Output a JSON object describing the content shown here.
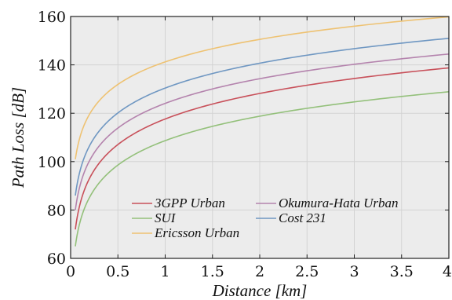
{
  "chart_data": {
    "type": "line",
    "xlabel": "Distance [km]",
    "ylabel": "Path Loss [dB]",
    "xlim": [
      0,
      4
    ],
    "ylim": [
      60,
      160
    ],
    "xticks": [
      0,
      0.5,
      1,
      1.5,
      2,
      2.5,
      3,
      3.5,
      4
    ],
    "xtick_labels": [
      "0",
      "0.5",
      "1",
      "1.5",
      "2",
      "2.5",
      "3",
      "3.5",
      "4"
    ],
    "yticks": [
      60,
      80,
      100,
      120,
      140,
      160
    ],
    "ytick_labels": [
      "60",
      "80",
      "100",
      "120",
      "140",
      "160"
    ],
    "grid": true,
    "legend_position": "lower-center",
    "x": [
      0.05,
      0.1,
      0.2,
      0.5,
      1,
      1.5,
      2,
      2.5,
      3,
      3.5,
      4
    ],
    "series": [
      {
        "name": "3GPP Urban",
        "color": "#c8505a",
        "values": [
          72,
          82.5,
          93.1,
          107.1,
          117.6,
          123.8,
          128.2,
          131.6,
          134.4,
          136.7,
          138.7
        ]
      },
      {
        "name": "Okumura-Hata Urban",
        "color": "#b483ad",
        "values": [
          80,
          90.2,
          100.4,
          113.9,
          124.1,
          130.0,
          134.3,
          137.6,
          140.2,
          142.5,
          144.5
        ]
      },
      {
        "name": "SUI",
        "color": "#93c07a",
        "values": [
          65,
          75.1,
          85.2,
          98.6,
          108.7,
          114.6,
          118.8,
          122.0,
          124.7,
          126.9,
          128.9
        ]
      },
      {
        "name": "Cost 231",
        "color": "#6f97c2",
        "values": [
          86,
          96.3,
          106.5,
          120.1,
          130.4,
          136.4,
          140.7,
          144.0,
          146.7,
          149.0,
          151.0
        ]
      },
      {
        "name": "Ericsson Urban",
        "color": "#eec272",
        "values": [
          101,
          110.3,
          119.6,
          131.9,
          141.2,
          146.6,
          150.5,
          153.6,
          156.0,
          158.1,
          159.9
        ]
      }
    ]
  },
  "colors": {
    "plot_background": "#ececec",
    "grid": "#d3d3d3"
  }
}
